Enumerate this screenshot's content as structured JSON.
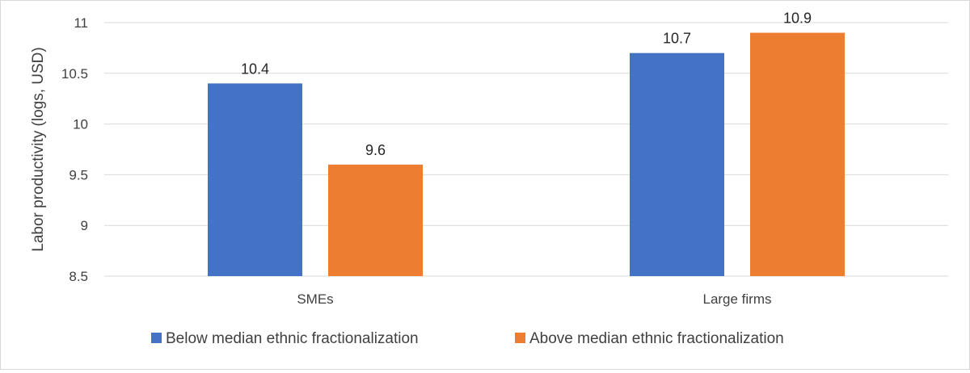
{
  "chart_data": {
    "type": "bar",
    "categories": [
      "SMEs",
      "Large firms"
    ],
    "series": [
      {
        "name": "Below median ethnic fractionalization",
        "values": [
          10.4,
          10.7
        ],
        "color": "#4472C4"
      },
      {
        "name": "Above median ethnic fractionalization",
        "values": [
          9.6,
          10.9
        ],
        "color": "#ED7D31"
      }
    ],
    "ylabel": "Labor productivity (logs, USD)",
    "ylim": [
      8.5,
      11
    ],
    "yticks": [
      8.5,
      9,
      9.5,
      10,
      10.5,
      11
    ],
    "ytick_labels": [
      "8.5",
      "9",
      "9.5",
      "10",
      "10.5",
      "11"
    ],
    "data_labels": [
      [
        "10.4",
        "10.7"
      ],
      [
        "9.6",
        "10.9"
      ]
    ],
    "grid": true,
    "legend_position": "bottom"
  }
}
